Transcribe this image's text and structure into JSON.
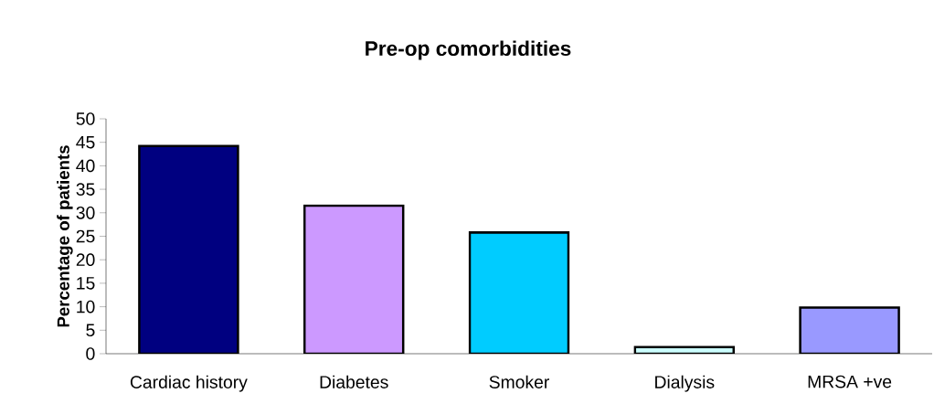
{
  "chart_data": {
    "type": "bar",
    "title": "Pre-op comorbidities",
    "ylabel": "Percentage of patients",
    "categories": [
      "Cardiac history",
      "Diabetes",
      "Smoker",
      "Dialysis",
      "MRSA +ve"
    ],
    "values": [
      44.2,
      31.5,
      25.8,
      1.4,
      9.8
    ],
    "colors": [
      "#000080",
      "#cc99ff",
      "#00ccff",
      "#ccffff",
      "#9999ff"
    ],
    "ylim": [
      0,
      50
    ],
    "yticks": [
      0,
      5,
      10,
      15,
      20,
      25,
      30,
      35,
      40,
      45,
      50
    ],
    "grid": false
  }
}
